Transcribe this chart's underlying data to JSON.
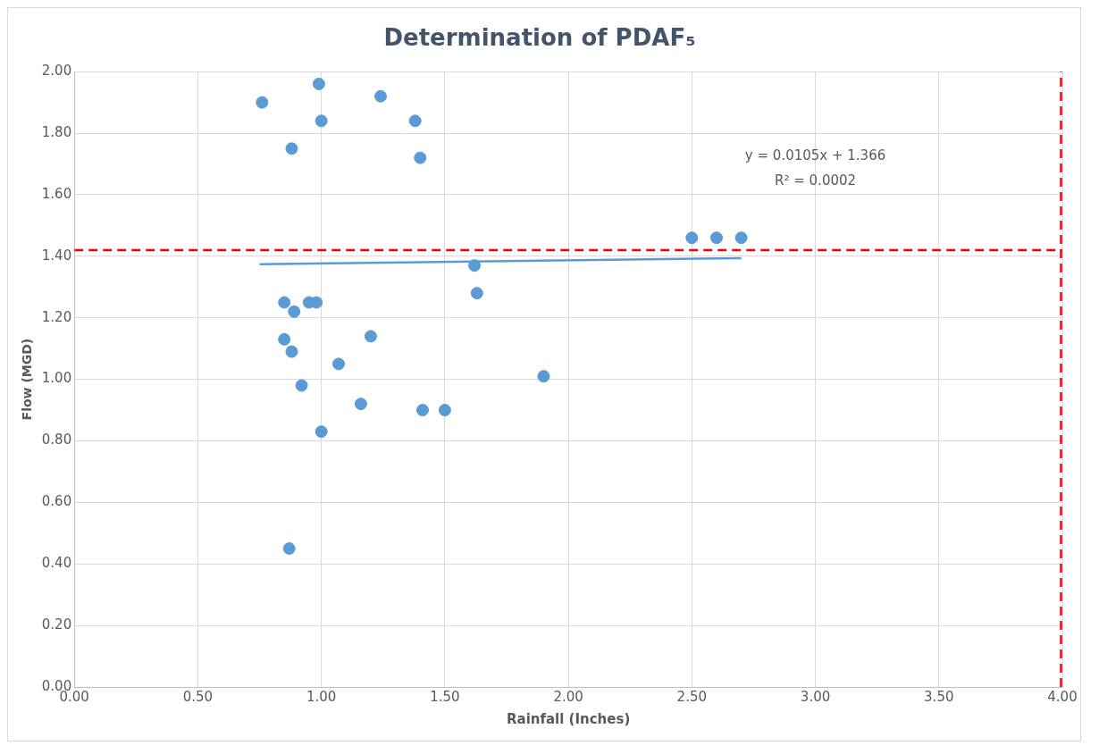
{
  "chart_data": {
    "type": "scatter",
    "title": "Determination of PDAF₅",
    "xlabel": "Rainfall (Inches)",
    "ylabel": "Flow (MGD)",
    "series": [
      {
        "marker": "circle",
        "color": "#5b9bd5",
        "x": [
          0.76,
          0.99,
          1.24,
          1.0,
          1.38,
          0.88,
          1.4,
          2.5,
          2.6,
          2.7,
          1.62,
          1.63,
          0.85,
          0.95,
          0.98,
          0.89,
          1.2,
          0.85,
          0.88,
          1.07,
          0.92,
          1.9,
          1.16,
          1.41,
          1.5,
          1.0,
          0.87
        ],
        "values": [
          1.9,
          1.96,
          1.92,
          1.84,
          1.84,
          1.75,
          1.72,
          1.46,
          1.46,
          1.46,
          1.37,
          1.28,
          1.25,
          1.25,
          1.25,
          1.22,
          1.14,
          1.13,
          1.09,
          1.05,
          0.98,
          1.01,
          0.92,
          0.9,
          0.9,
          0.83,
          0.45
        ]
      },
      {
        "type": "line",
        "color": "#5b9bd5",
        "x": [
          0.75,
          2.7
        ],
        "values": [
          1.374,
          1.394
        ],
        "line_style": "solid",
        "marker": "none"
      }
    ],
    "ref_lines": [
      {
        "axis": "y",
        "value": 1.42,
        "color": "#ff0000",
        "line_style": "dashed"
      },
      {
        "axis": "x",
        "value": 4,
        "color": "#ff0000",
        "line_style": "dashed"
      }
    ],
    "xlim": [
      0,
      4
    ],
    "xticks": [
      {
        "value": 0,
        "label": "0.00"
      },
      {
        "value": 0.5,
        "label": "0.50"
      },
      {
        "value": 1,
        "label": "1.00"
      },
      {
        "value": 1.5,
        "label": "1.50"
      },
      {
        "value": 2,
        "label": "2.00"
      },
      {
        "value": 2.5,
        "label": "2.50"
      },
      {
        "value": 3,
        "label": "3.00"
      },
      {
        "value": 3.5,
        "label": "3.50"
      },
      {
        "value": 4,
        "label": "4.00"
      }
    ],
    "ylim": [
      0,
      2
    ],
    "yticks": [
      {
        "value": 0,
        "label": "0.00"
      },
      {
        "value": 0.2,
        "label": "0.20"
      },
      {
        "value": 0.4,
        "label": "0.40"
      },
      {
        "value": 0.6,
        "label": "0.60"
      },
      {
        "value": 0.8,
        "label": "0.80"
      },
      {
        "value": 1,
        "label": "1.00"
      },
      {
        "value": 1.2,
        "label": "1.20"
      },
      {
        "value": 1.4,
        "label": "1.40"
      },
      {
        "value": 1.6,
        "label": "1.60"
      },
      {
        "value": 1.8,
        "label": "1.80"
      },
      {
        "value": 2,
        "label": "2.00"
      }
    ],
    "grid": true,
    "annotations": [
      "y = 0.0105x + 1.366",
      "R² = 0.0002"
    ]
  }
}
